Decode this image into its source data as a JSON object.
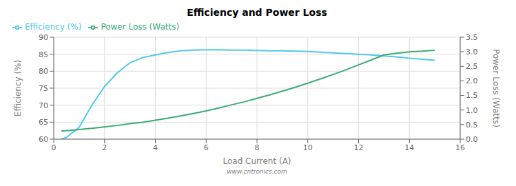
{
  "chart_data": {
    "type": "line",
    "title": "Efficiency and Power Loss",
    "xlabel": "Load Current (A)",
    "ylabel": "Efficiency (%)",
    "y2label": "Power Loss (Watts)",
    "x": [
      0.3,
      0.5,
      1.0,
      1.5,
      2.0,
      2.5,
      3.0,
      3.5,
      4.0,
      4.5,
      5.0,
      5.5,
      6.0,
      6.5,
      7.0,
      7.5,
      8.0,
      8.5,
      9.0,
      9.5,
      10.0,
      10.5,
      11.0,
      11.5,
      12.0,
      12.5,
      13.0,
      13.5,
      14.0,
      14.5,
      15.0
    ],
    "xlim": [
      0,
      16
    ],
    "xticks": [
      0,
      2,
      4,
      6,
      8,
      10,
      12,
      14,
      16
    ],
    "ylim": [
      60,
      90
    ],
    "yticks": [
      60,
      65,
      70,
      75,
      80,
      85,
      90
    ],
    "y2lim": [
      0.0,
      3.5
    ],
    "y2ticks": [
      {
        "value": 0.0,
        "label": "0.0"
      },
      {
        "value": 0.5,
        "label": "0.5"
      },
      {
        "value": 1.0,
        "label": "1.0"
      },
      {
        "value": 1.5,
        "label": "1.5"
      },
      {
        "value": 2.0,
        "label": "2.0"
      },
      {
        "value": 2.5,
        "label": "2.5"
      },
      {
        "value": 3.0,
        "label": "3.0"
      },
      {
        "value": 3.5,
        "label": "3.5"
      }
    ],
    "series": [
      {
        "name": "Efficiency (%)",
        "color": "#4EC9E8",
        "values": [
          60.0,
          60.5,
          63.5,
          70.0,
          75.5,
          79.5,
          82.5,
          84.0,
          84.8,
          85.5,
          86.0,
          86.2,
          86.3,
          86.3,
          86.2,
          86.2,
          86.1,
          86.0,
          86.0,
          85.9,
          85.8,
          85.6,
          85.4,
          85.2,
          85.0,
          84.8,
          84.5,
          84.2,
          83.8,
          83.5,
          83.2
        ]
      },
      {
        "name": "Power Loss (Watts)",
        "color": "#3AAA76",
        "axis": "y2",
        "values": [
          0.28,
          0.29,
          0.33,
          0.37,
          0.42,
          0.47,
          0.53,
          0.58,
          0.65,
          0.72,
          0.8,
          0.88,
          0.97,
          1.07,
          1.18,
          1.28,
          1.4,
          1.52,
          1.65,
          1.78,
          1.92,
          2.07,
          2.22,
          2.38,
          2.55,
          2.72,
          2.89,
          2.95,
          3.0,
          3.02,
          3.05
        ]
      }
    ],
    "grid": true,
    "legend": "upper left",
    "annotations": [
      "www.cntronics.com"
    ]
  }
}
